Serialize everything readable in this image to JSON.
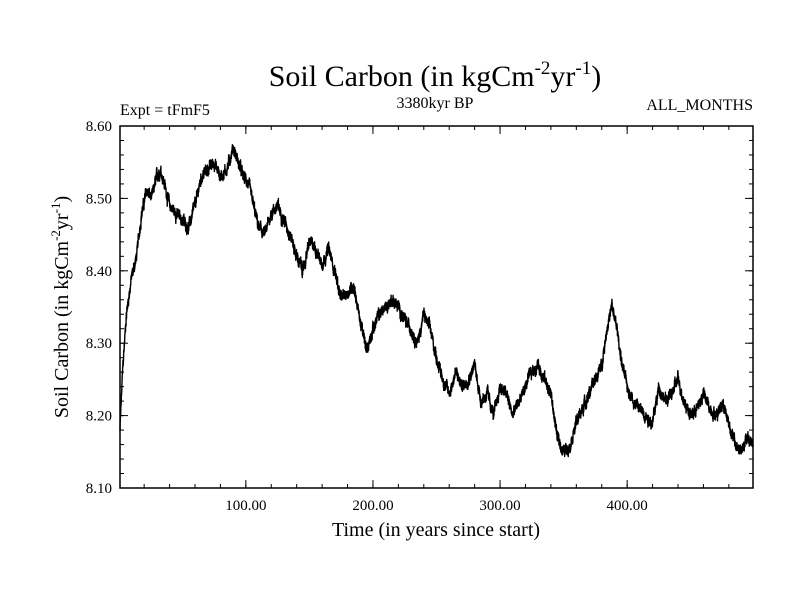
{
  "chart_data": {
    "type": "line",
    "title": "Soil Carbon (in kgCm",
    "title_sup1": "-2",
    "title_mid": "yr",
    "title_sup2": "-1",
    "title_end": ")",
    "subtitle_left": "Expt = tFmF5",
    "subtitle_center": "3380kyr BP",
    "subtitle_right": "ALL_MONTHS",
    "xlabel": "Time (in years since start)",
    "ylabel": "Soil Carbon (in kgCm",
    "ylabel_sup1": "-2",
    "ylabel_mid": "yr",
    "ylabel_sup2": "-1",
    "ylabel_end": ")",
    "xlim": [
      1,
      499
    ],
    "ylim": [
      8.1,
      8.6
    ],
    "xticks": [
      100,
      200,
      300,
      400
    ],
    "xtick_labels": [
      "100.00",
      "200.00",
      "300.00",
      "400.00"
    ],
    "yticks": [
      8.1,
      8.2,
      8.3,
      8.4,
      8.5,
      8.6
    ],
    "ytick_labels": [
      "8.10",
      "8.20",
      "8.30",
      "8.40",
      "8.50",
      "8.60"
    ],
    "grid": false,
    "series": [
      {
        "name": "Soil Carbon",
        "color": "#000000",
        "noise_amplitude": 0.012,
        "x": [
          1,
          3,
          6,
          10,
          14,
          18,
          22,
          26,
          30,
          33,
          36,
          40,
          45,
          50,
          55,
          60,
          65,
          70,
          75,
          80,
          85,
          90,
          94,
          98,
          102,
          106,
          110,
          115,
          120,
          125,
          130,
          135,
          140,
          145,
          150,
          155,
          160,
          165,
          170,
          175,
          180,
          185,
          190,
          195,
          200,
          205,
          210,
          215,
          220,
          225,
          230,
          235,
          240,
          245,
          250,
          255,
          260,
          265,
          270,
          275,
          280,
          285,
          290,
          295,
          300,
          305,
          310,
          315,
          320,
          325,
          330,
          335,
          340,
          345,
          350,
          355,
          360,
          365,
          370,
          375,
          380,
          384,
          388,
          392,
          396,
          400,
          405,
          410,
          415,
          420,
          425,
          430,
          435,
          440,
          445,
          450,
          455,
          460,
          465,
          470,
          475,
          480,
          485,
          490,
          495,
          499
        ],
        "values": [
          8.18,
          8.26,
          8.34,
          8.39,
          8.42,
          8.48,
          8.51,
          8.5,
          8.53,
          8.54,
          8.52,
          8.49,
          8.48,
          8.47,
          8.46,
          8.49,
          8.53,
          8.54,
          8.55,
          8.53,
          8.54,
          8.57,
          8.55,
          8.53,
          8.52,
          8.49,
          8.46,
          8.45,
          8.48,
          8.49,
          8.47,
          8.45,
          8.42,
          8.4,
          8.44,
          8.43,
          8.41,
          8.43,
          8.4,
          8.36,
          8.37,
          8.38,
          8.33,
          8.29,
          8.32,
          8.34,
          8.35,
          8.36,
          8.35,
          8.33,
          8.32,
          8.3,
          8.34,
          8.32,
          8.28,
          8.25,
          8.23,
          8.26,
          8.24,
          8.25,
          8.27,
          8.22,
          8.23,
          8.2,
          8.24,
          8.23,
          8.2,
          8.22,
          8.24,
          8.26,
          8.27,
          8.25,
          8.23,
          8.17,
          8.15,
          8.16,
          8.19,
          8.21,
          8.23,
          8.25,
          8.27,
          8.32,
          8.35,
          8.32,
          8.27,
          8.24,
          8.22,
          8.21,
          8.2,
          8.19,
          8.24,
          8.22,
          8.23,
          8.25,
          8.22,
          8.2,
          8.21,
          8.23,
          8.21,
          8.2,
          8.22,
          8.19,
          8.16,
          8.15,
          8.17,
          8.16
        ]
      }
    ]
  }
}
